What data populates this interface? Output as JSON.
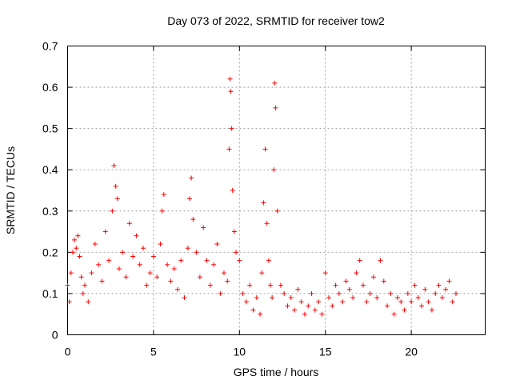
{
  "chart_data": {
    "type": "scatter",
    "title": "Day 073 of 2022, SRMTID for receiver tow2",
    "xlabel": "GPS time / hours",
    "ylabel": "SRMTID / TECUs",
    "xlim": [
      0,
      24.3
    ],
    "ylim": [
      0,
      0.7
    ],
    "xticks": [
      0,
      5,
      10,
      15,
      20
    ],
    "xtick_labels": [
      "0",
      "5",
      "10",
      "15",
      "20"
    ],
    "yticks": [
      0,
      0.1,
      0.2,
      0.3,
      0.4,
      0.5,
      0.6,
      0.7
    ],
    "ytick_labels": [
      "0",
      "0.1",
      "0.2",
      "0.3",
      "0.4",
      "0.5",
      "0.6",
      "0.7"
    ],
    "grid": true,
    "marker": "+",
    "series": [
      {
        "name": "tow2",
        "color": "#ff0000",
        "x": [
          0.0,
          0.1,
          0.2,
          0.3,
          0.4,
          0.5,
          0.6,
          0.7,
          0.8,
          0.9,
          1.0,
          1.2,
          1.4,
          1.6,
          1.8,
          2.0,
          2.2,
          2.4,
          2.6,
          2.7,
          2.8,
          2.9,
          3.0,
          3.2,
          3.4,
          3.6,
          3.8,
          4.0,
          4.2,
          4.4,
          4.6,
          4.8,
          5.0,
          5.2,
          5.4,
          5.5,
          5.6,
          5.8,
          6.0,
          6.2,
          6.4,
          6.6,
          6.8,
          7.0,
          7.1,
          7.2,
          7.3,
          7.5,
          7.7,
          7.9,
          8.1,
          8.3,
          8.5,
          8.7,
          8.9,
          9.1,
          9.3,
          9.4,
          9.45,
          9.5,
          9.55,
          9.6,
          9.7,
          9.8,
          10.0,
          10.2,
          10.4,
          10.6,
          10.8,
          11.0,
          11.2,
          11.3,
          11.4,
          11.5,
          11.6,
          11.7,
          11.8,
          11.9,
          12.0,
          12.05,
          12.1,
          12.2,
          12.4,
          12.6,
          12.8,
          13.0,
          13.2,
          13.4,
          13.6,
          13.8,
          14.0,
          14.2,
          14.4,
          14.6,
          14.8,
          15.0,
          15.2,
          15.4,
          15.6,
          15.8,
          16.0,
          16.2,
          16.4,
          16.6,
          16.8,
          17.0,
          17.2,
          17.4,
          17.6,
          17.8,
          18.0,
          18.2,
          18.4,
          18.6,
          18.8,
          19.0,
          19.2,
          19.4,
          19.6,
          19.8,
          20.0,
          20.2,
          20.4,
          20.6,
          20.8,
          21.0,
          21.2,
          21.4,
          21.6,
          21.8,
          22.0,
          22.2,
          22.4,
          22.6
        ],
        "y": [
          0.12,
          0.08,
          0.15,
          0.2,
          0.23,
          0.21,
          0.24,
          0.19,
          0.14,
          0.1,
          0.12,
          0.08,
          0.15,
          0.22,
          0.17,
          0.13,
          0.25,
          0.18,
          0.3,
          0.41,
          0.36,
          0.33,
          0.16,
          0.2,
          0.14,
          0.27,
          0.19,
          0.24,
          0.17,
          0.21,
          0.12,
          0.15,
          0.19,
          0.14,
          0.22,
          0.3,
          0.34,
          0.17,
          0.13,
          0.16,
          0.11,
          0.18,
          0.09,
          0.21,
          0.33,
          0.38,
          0.28,
          0.2,
          0.14,
          0.26,
          0.18,
          0.12,
          0.17,
          0.22,
          0.1,
          0.15,
          0.13,
          0.45,
          0.62,
          0.59,
          0.5,
          0.35,
          0.25,
          0.2,
          0.18,
          0.1,
          0.08,
          0.12,
          0.06,
          0.09,
          0.05,
          0.15,
          0.32,
          0.45,
          0.27,
          0.18,
          0.12,
          0.09,
          0.4,
          0.61,
          0.55,
          0.3,
          0.12,
          0.1,
          0.07,
          0.09,
          0.06,
          0.11,
          0.08,
          0.05,
          0.07,
          0.1,
          0.06,
          0.08,
          0.05,
          0.15,
          0.09,
          0.07,
          0.12,
          0.1,
          0.08,
          0.13,
          0.11,
          0.09,
          0.15,
          0.18,
          0.12,
          0.08,
          0.1,
          0.14,
          0.09,
          0.18,
          0.13,
          0.07,
          0.1,
          0.05,
          0.09,
          0.08,
          0.06,
          0.1,
          0.08,
          0.12,
          0.09,
          0.07,
          0.11,
          0.08,
          0.06,
          0.1,
          0.12,
          0.09,
          0.11,
          0.13,
          0.08,
          0.1
        ]
      }
    ]
  }
}
